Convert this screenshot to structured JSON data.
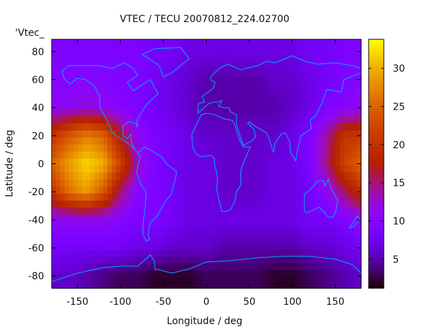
{
  "chart_data": {
    "type": "heatmap",
    "title": "VTEC / TECU 20070812_224.02700",
    "xlabel": "Longitude / deg",
    "ylabel": "Latitude / deg",
    "key_label": "'Vtec_",
    "xlim": [
      -180,
      180
    ],
    "ylim": [
      -88.75,
      88.75
    ],
    "xticks": [
      -150,
      -100,
      -50,
      0,
      50,
      100,
      150
    ],
    "yticks": [
      -80,
      -60,
      -40,
      -20,
      0,
      20,
      40,
      60,
      80
    ],
    "cbrange": [
      1.2,
      33.8
    ],
    "cbticks": [
      5,
      10,
      15,
      20,
      25,
      30
    ],
    "colormap": "gnuplot rgbformulae 7,5,15 (black-blue-violet-red-yellow)",
    "coastline_color": "#00aaff",
    "grid_lon": [
      -180,
      -160,
      -140,
      -120,
      -100,
      -80,
      -60,
      -40,
      -20,
      0,
      20,
      40,
      60,
      80,
      100,
      120,
      140,
      160,
      180
    ],
    "grid_lat": [
      80,
      60,
      40,
      20,
      0,
      -20,
      -40,
      -60,
      -80
    ],
    "values": [
      [
        9,
        9,
        9,
        9,
        9,
        9,
        8,
        8,
        7,
        7,
        7,
        7,
        7,
        7,
        7,
        8,
        8,
        9,
        9
      ],
      [
        10,
        10,
        10,
        10,
        9,
        9,
        8,
        7,
        6,
        5,
        5,
        5,
        5,
        6,
        6,
        7,
        8,
        9,
        10
      ],
      [
        11,
        11,
        12,
        11,
        10,
        9,
        8,
        7,
        6,
        5,
        5,
        5,
        5,
        5,
        6,
        7,
        9,
        10,
        11
      ],
      [
        20,
        24,
        27,
        25,
        17,
        11,
        9,
        8,
        7,
        6,
        6,
        6,
        6,
        6,
        7,
        9,
        14,
        20,
        21
      ],
      [
        25,
        29,
        32,
        30,
        22,
        13,
        9,
        8,
        7,
        7,
        6,
        6,
        6,
        7,
        7,
        9,
        15,
        22,
        25
      ],
      [
        20,
        26,
        29,
        24,
        15,
        10,
        9,
        8,
        7,
        7,
        6,
        6,
        6,
        7,
        7,
        8,
        11,
        15,
        20
      ],
      [
        11,
        11,
        11,
        11,
        10,
        9,
        9,
        8,
        7,
        7,
        7,
        7,
        7,
        7,
        7,
        8,
        8,
        9,
        11
      ],
      [
        8,
        8,
        8,
        8,
        8,
        7,
        7,
        6,
        6,
        6,
        5,
        5,
        5,
        5,
        5,
        6,
        6,
        7,
        8
      ],
      [
        6,
        6,
        5,
        4,
        3,
        3,
        2,
        2,
        2,
        3,
        3,
        3,
        3,
        2,
        2,
        3,
        4,
        5,
        6
      ]
    ]
  }
}
